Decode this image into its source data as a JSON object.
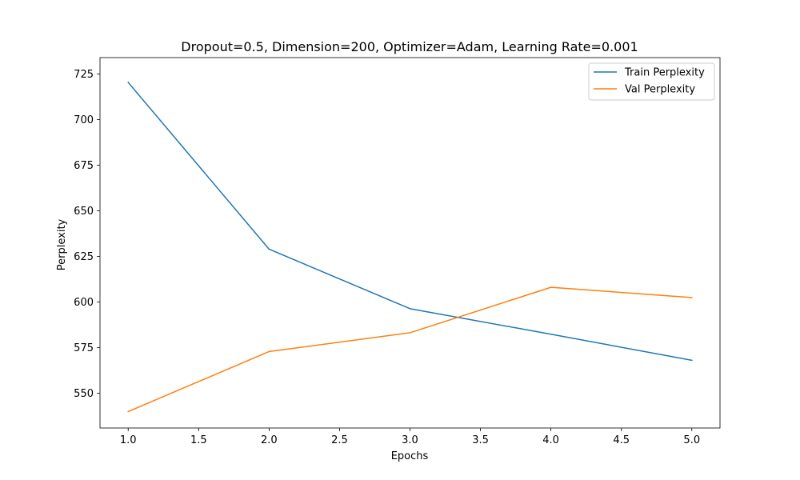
{
  "chart_data": {
    "type": "line",
    "title": "Dropout=0.5, Dimension=200, Optimizer=Adam, Learning Rate=0.001",
    "xlabel": "Epochs",
    "ylabel": "Perplexity",
    "x": [
      1,
      2,
      3,
      4,
      5
    ],
    "xlim": [
      0.8,
      5.2
    ],
    "ylim": [
      531,
      734
    ],
    "xticks": [
      1.0,
      1.5,
      2.0,
      2.5,
      3.0,
      3.5,
      4.0,
      4.5,
      5.0
    ],
    "xtick_labels": [
      "1.0",
      "1.5",
      "2.0",
      "2.5",
      "3.0",
      "3.5",
      "4.0",
      "4.5",
      "5.0"
    ],
    "yticks": [
      550,
      575,
      600,
      625,
      650,
      675,
      700,
      725
    ],
    "ytick_labels": [
      "550",
      "575",
      "600",
      "625",
      "650",
      "675",
      "700",
      "725"
    ],
    "grid": false,
    "legend_position": "top-right",
    "series": [
      {
        "name": "Train Perplexity",
        "color": "#1f77b4",
        "values": [
          720.4,
          629.0,
          596.4,
          582.4,
          568.1
        ]
      },
      {
        "name": "Val Perplexity",
        "color": "#ff7f0e",
        "values": [
          540.0,
          572.9,
          583.2,
          608.1,
          602.5
        ]
      }
    ]
  }
}
